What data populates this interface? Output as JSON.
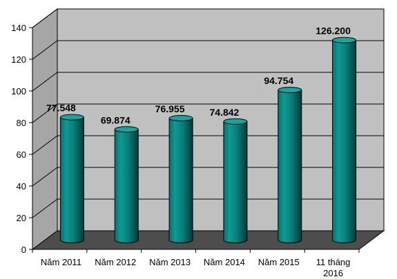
{
  "chart_data": {
    "type": "bar",
    "categories": [
      [
        "Năm 2011"
      ],
      [
        "Năm 2012"
      ],
      [
        "Năm 2013"
      ],
      [
        "Năm 2014"
      ],
      [
        "Năm 2015"
      ],
      [
        "11 tháng",
        "2016"
      ]
    ],
    "values": [
      77.548,
      69.874,
      76.955,
      74.842,
      94.754,
      126.2
    ],
    "data_labels": [
      "77.548",
      "69.874",
      "76.955",
      "74.842",
      "94.754",
      "126.200"
    ],
    "title": "",
    "xlabel": "",
    "ylabel": "",
    "ylim": [
      0,
      140
    ],
    "yticks": [
      0,
      20,
      40,
      60,
      80,
      100,
      120,
      140
    ],
    "grid": true,
    "legend": "none",
    "style": "3d-cylinder"
  },
  "colors": {
    "bar_fill": "#0b8a86",
    "bar_dark": "#04524f",
    "bar_top": "#15a6a1",
    "back_wall": "#c0c0c0",
    "side_wall": "#a6a6a6",
    "floor": "#4d4d4d",
    "grid": "#000000"
  }
}
